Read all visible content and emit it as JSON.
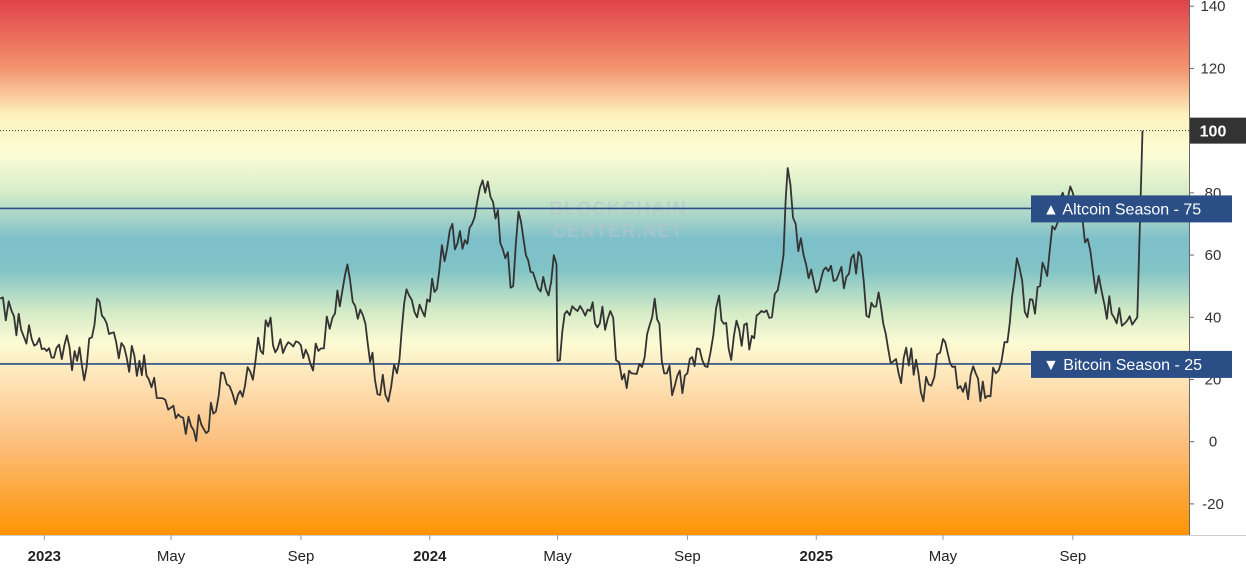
{
  "watermark": {
    "line1": "BLOCKCHAIN",
    "line2": "CENTER.NET"
  },
  "chart_data": {
    "type": "line",
    "title": "",
    "xlabel": "",
    "ylabel": "",
    "ylim": [
      -30,
      142
    ],
    "xlim": [
      "2022-11-20",
      "2025-12-20"
    ],
    "y_ticks": [
      140,
      120,
      100,
      80,
      60,
      40,
      20,
      0,
      -20
    ],
    "x_ticks": [
      {
        "date": "2023-01-01",
        "label": "2023",
        "year": true
      },
      {
        "date": "2023-05-01",
        "label": "May",
        "year": false
      },
      {
        "date": "2023-09-01",
        "label": "Sep",
        "year": false
      },
      {
        "date": "2024-01-01",
        "label": "2024",
        "year": true
      },
      {
        "date": "2024-05-01",
        "label": "May",
        "year": false
      },
      {
        "date": "2024-09-01",
        "label": "Sep",
        "year": false
      },
      {
        "date": "2025-01-01",
        "label": "2025",
        "year": true
      },
      {
        "date": "2025-05-01",
        "label": "May",
        "year": false
      },
      {
        "date": "2025-09-01",
        "label": "Sep",
        "year": false
      }
    ],
    "background_gradient": [
      {
        "value": 142,
        "color": "#e0424a"
      },
      {
        "value": 120,
        "color": "#f4936d"
      },
      {
        "value": 105,
        "color": "#fdf2be"
      },
      {
        "value": 92,
        "color": "#fbfdd6"
      },
      {
        "value": 80,
        "color": "#d5ecc8"
      },
      {
        "value": 65,
        "color": "#7dbfca"
      },
      {
        "value": 55,
        "color": "#82c4c6"
      },
      {
        "value": 42,
        "color": "#d2eac6"
      },
      {
        "value": 32,
        "color": "#fbfbd4"
      },
      {
        "value": 18,
        "color": "#fee0b2"
      },
      {
        "value": 0,
        "color": "#fbbf7e"
      },
      {
        "value": -30,
        "color": "#fe9402"
      }
    ],
    "reference_lines": [
      {
        "value": 75,
        "label": "▲ Altcoin Season",
        "value_label": "75",
        "color": "#2b4e86"
      },
      {
        "value": 25,
        "label": "▼ Bitcoin Season",
        "value_label": "25",
        "color": "#2b4e86"
      }
    ],
    "max_line": {
      "value": 100,
      "label": "100"
    },
    "series": [
      {
        "color": "#333333",
        "points": [
          [
            "2022-11-20",
            46
          ],
          [
            "2022-12-01",
            42
          ],
          [
            "2022-12-10",
            36
          ],
          [
            "2022-12-20",
            33
          ],
          [
            "2023-01-01",
            30
          ],
          [
            "2023-01-10",
            27
          ],
          [
            "2023-01-20",
            31
          ],
          [
            "2023-02-01",
            26
          ],
          [
            "2023-02-10",
            24
          ],
          [
            "2023-02-20",
            46
          ],
          [
            "2023-03-01",
            38
          ],
          [
            "2023-03-10",
            32
          ],
          [
            "2023-03-20",
            27
          ],
          [
            "2023-04-01",
            26
          ],
          [
            "2023-04-10",
            20
          ],
          [
            "2023-04-20",
            14
          ],
          [
            "2023-05-01",
            11
          ],
          [
            "2023-05-10",
            8
          ],
          [
            "2023-05-20",
            5
          ],
          [
            "2023-06-01",
            4
          ],
          [
            "2023-06-10",
            9
          ],
          [
            "2023-06-20",
            22
          ],
          [
            "2023-07-01",
            12
          ],
          [
            "2023-07-10",
            18
          ],
          [
            "2023-07-20",
            26
          ],
          [
            "2023-08-01",
            37
          ],
          [
            "2023-08-10",
            30
          ],
          [
            "2023-08-20",
            32
          ],
          [
            "2023-09-01",
            31
          ],
          [
            "2023-09-10",
            25
          ],
          [
            "2023-09-20",
            30
          ],
          [
            "2023-10-01",
            40
          ],
          [
            "2023-10-10",
            48
          ],
          [
            "2023-10-15",
            57
          ],
          [
            "2023-10-20",
            45
          ],
          [
            "2023-11-01",
            38
          ],
          [
            "2023-11-10",
            20
          ],
          [
            "2023-11-20",
            15
          ],
          [
            "2023-12-01",
            22
          ],
          [
            "2023-12-10",
            49
          ],
          [
            "2023-12-20",
            40
          ],
          [
            "2024-01-01",
            45
          ],
          [
            "2024-01-10",
            55
          ],
          [
            "2024-01-20",
            68
          ],
          [
            "2024-02-01",
            62
          ],
          [
            "2024-02-10",
            70
          ],
          [
            "2024-02-20",
            84
          ],
          [
            "2024-03-01",
            77
          ],
          [
            "2024-03-10",
            62
          ],
          [
            "2024-03-20",
            50
          ],
          [
            "2024-03-25",
            74
          ],
          [
            "2024-04-01",
            60
          ],
          [
            "2024-04-10",
            52
          ],
          [
            "2024-04-20",
            49
          ],
          [
            "2024-04-30",
            57
          ],
          [
            "2024-05-01",
            26
          ],
          [
            "2024-05-10",
            42
          ],
          [
            "2024-05-20",
            42
          ],
          [
            "2024-06-01",
            42
          ],
          [
            "2024-06-10",
            38
          ],
          [
            "2024-06-20",
            42
          ],
          [
            "2024-07-01",
            20
          ],
          [
            "2024-07-10",
            22
          ],
          [
            "2024-07-20",
            24
          ],
          [
            "2024-08-01",
            46
          ],
          [
            "2024-08-10",
            22
          ],
          [
            "2024-08-20",
            18
          ],
          [
            "2024-09-01",
            22
          ],
          [
            "2024-09-10",
            30
          ],
          [
            "2024-09-20",
            24
          ],
          [
            "2024-10-01",
            47
          ],
          [
            "2024-10-10",
            30
          ],
          [
            "2024-10-20",
            36
          ],
          [
            "2024-11-01",
            34
          ],
          [
            "2024-11-10",
            42
          ],
          [
            "2024-11-20",
            40
          ],
          [
            "2024-12-01",
            60
          ],
          [
            "2024-12-05",
            88
          ],
          [
            "2024-12-10",
            72
          ],
          [
            "2024-12-20",
            60
          ],
          [
            "2025-01-01",
            48
          ],
          [
            "2025-01-10",
            56
          ],
          [
            "2025-01-20",
            52
          ],
          [
            "2025-02-01",
            54
          ],
          [
            "2025-02-10",
            61
          ],
          [
            "2025-02-20",
            40
          ],
          [
            "2025-03-01",
            48
          ],
          [
            "2025-03-10",
            30
          ],
          [
            "2025-03-20",
            22
          ],
          [
            "2025-04-01",
            30
          ],
          [
            "2025-04-10",
            16
          ],
          [
            "2025-04-20",
            18
          ],
          [
            "2025-05-01",
            33
          ],
          [
            "2025-05-10",
            24
          ],
          [
            "2025-05-20",
            16
          ],
          [
            "2025-06-01",
            22
          ],
          [
            "2025-06-10",
            14
          ],
          [
            "2025-06-20",
            22
          ],
          [
            "2025-07-01",
            32
          ],
          [
            "2025-07-10",
            59
          ],
          [
            "2025-07-20",
            40
          ],
          [
            "2025-08-01",
            50
          ],
          [
            "2025-08-10",
            61
          ],
          [
            "2025-08-20",
            78
          ],
          [
            "2025-09-01",
            80
          ],
          [
            "2025-09-10",
            72
          ],
          [
            "2025-09-20",
            55
          ],
          [
            "2025-10-01",
            44
          ],
          [
            "2025-10-10",
            40
          ],
          [
            "2025-10-20",
            38
          ],
          [
            "2025-11-01",
            40
          ],
          [
            "2025-11-06",
            100
          ]
        ]
      }
    ]
  }
}
